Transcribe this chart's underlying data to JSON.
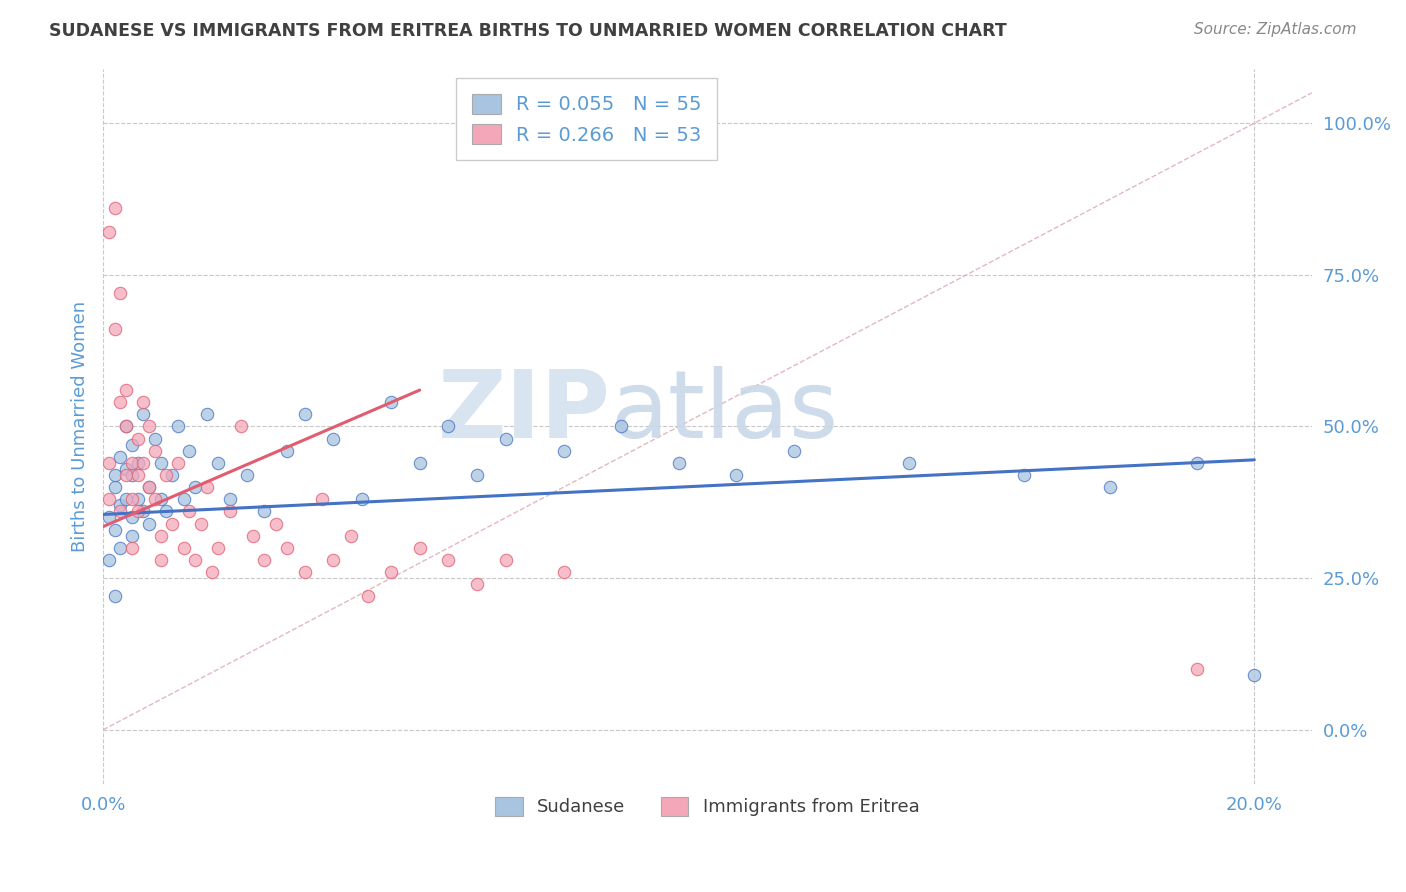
{
  "title": "SUDANESE VS IMMIGRANTS FROM ERITREA BIRTHS TO UNMARRIED WOMEN CORRELATION CHART",
  "source": "Source: ZipAtlas.com",
  "ylabel_label": "Births to Unmarried Women",
  "x_tick_labels": [
    "0.0%",
    "20.0%"
  ],
  "y_tick_labels": [
    "0.0%",
    "25.0%",
    "50.0%",
    "75.0%",
    "100.0%"
  ],
  "xlim": [
    0.0,
    0.21
  ],
  "ylim": [
    -0.09,
    1.09
  ],
  "y_ticks": [
    0.0,
    0.25,
    0.5,
    0.75,
    1.0
  ],
  "x_ticks": [
    0.0,
    0.2
  ],
  "legend_labels": [
    "Sudanese",
    "Immigrants from Eritrea"
  ],
  "R_sudanese": 0.055,
  "N_sudanese": 55,
  "R_eritrea": 0.266,
  "N_eritrea": 53,
  "sudanese_color": "#a8c4e0",
  "eritrea_color": "#f4a7b9",
  "sudanese_line_color": "#4472c4",
  "eritrea_line_color": "#e05c6e",
  "diagonal_color": "#e0b0b8",
  "grid_color": "#c8c8c8",
  "title_color": "#404040",
  "axis_label_color": "#5b9bd5",
  "tick_color": "#5b9bd5",
  "watermark_color": "#d8e4f0",
  "sudanese_scatter": [
    [
      0.001,
      0.35
    ],
    [
      0.001,
      0.28
    ],
    [
      0.002,
      0.4
    ],
    [
      0.002,
      0.33
    ],
    [
      0.002,
      0.42
    ],
    [
      0.003,
      0.37
    ],
    [
      0.003,
      0.45
    ],
    [
      0.003,
      0.3
    ],
    [
      0.004,
      0.5
    ],
    [
      0.004,
      0.38
    ],
    [
      0.004,
      0.43
    ],
    [
      0.005,
      0.35
    ],
    [
      0.005,
      0.47
    ],
    [
      0.005,
      0.32
    ],
    [
      0.005,
      0.42
    ],
    [
      0.006,
      0.38
    ],
    [
      0.006,
      0.44
    ],
    [
      0.007,
      0.36
    ],
    [
      0.007,
      0.52
    ],
    [
      0.008,
      0.4
    ],
    [
      0.008,
      0.34
    ],
    [
      0.009,
      0.48
    ],
    [
      0.01,
      0.38
    ],
    [
      0.01,
      0.44
    ],
    [
      0.011,
      0.36
    ],
    [
      0.012,
      0.42
    ],
    [
      0.013,
      0.5
    ],
    [
      0.014,
      0.38
    ],
    [
      0.015,
      0.46
    ],
    [
      0.016,
      0.4
    ],
    [
      0.018,
      0.52
    ],
    [
      0.02,
      0.44
    ],
    [
      0.022,
      0.38
    ],
    [
      0.025,
      0.42
    ],
    [
      0.028,
      0.36
    ],
    [
      0.032,
      0.46
    ],
    [
      0.035,
      0.52
    ],
    [
      0.04,
      0.48
    ],
    [
      0.045,
      0.38
    ],
    [
      0.05,
      0.54
    ],
    [
      0.055,
      0.44
    ],
    [
      0.06,
      0.5
    ],
    [
      0.065,
      0.42
    ],
    [
      0.07,
      0.48
    ],
    [
      0.08,
      0.46
    ],
    [
      0.09,
      0.5
    ],
    [
      0.1,
      0.44
    ],
    [
      0.11,
      0.42
    ],
    [
      0.12,
      0.46
    ],
    [
      0.14,
      0.44
    ],
    [
      0.16,
      0.42
    ],
    [
      0.175,
      0.4
    ],
    [
      0.19,
      0.44
    ],
    [
      0.2,
      0.09
    ],
    [
      0.002,
      0.22
    ]
  ],
  "eritrea_scatter": [
    [
      0.001,
      0.38
    ],
    [
      0.001,
      0.44
    ],
    [
      0.001,
      0.82
    ],
    [
      0.002,
      0.86
    ],
    [
      0.002,
      0.66
    ],
    [
      0.003,
      0.72
    ],
    [
      0.003,
      0.54
    ],
    [
      0.003,
      0.36
    ],
    [
      0.004,
      0.42
    ],
    [
      0.004,
      0.56
    ],
    [
      0.004,
      0.5
    ],
    [
      0.005,
      0.38
    ],
    [
      0.005,
      0.44
    ],
    [
      0.005,
      0.3
    ],
    [
      0.006,
      0.48
    ],
    [
      0.006,
      0.42
    ],
    [
      0.006,
      0.36
    ],
    [
      0.007,
      0.54
    ],
    [
      0.007,
      0.44
    ],
    [
      0.008,
      0.4
    ],
    [
      0.008,
      0.5
    ],
    [
      0.009,
      0.38
    ],
    [
      0.009,
      0.46
    ],
    [
      0.01,
      0.28
    ],
    [
      0.01,
      0.32
    ],
    [
      0.011,
      0.42
    ],
    [
      0.012,
      0.34
    ],
    [
      0.013,
      0.44
    ],
    [
      0.014,
      0.3
    ],
    [
      0.015,
      0.36
    ],
    [
      0.016,
      0.28
    ],
    [
      0.017,
      0.34
    ],
    [
      0.018,
      0.4
    ],
    [
      0.019,
      0.26
    ],
    [
      0.02,
      0.3
    ],
    [
      0.022,
      0.36
    ],
    [
      0.024,
      0.5
    ],
    [
      0.026,
      0.32
    ],
    [
      0.028,
      0.28
    ],
    [
      0.03,
      0.34
    ],
    [
      0.032,
      0.3
    ],
    [
      0.035,
      0.26
    ],
    [
      0.038,
      0.38
    ],
    [
      0.04,
      0.28
    ],
    [
      0.043,
      0.32
    ],
    [
      0.046,
      0.22
    ],
    [
      0.05,
      0.26
    ],
    [
      0.055,
      0.3
    ],
    [
      0.06,
      0.28
    ],
    [
      0.065,
      0.24
    ],
    [
      0.07,
      0.28
    ],
    [
      0.08,
      0.26
    ],
    [
      0.19,
      0.1
    ]
  ],
  "sudanese_line": {
    "x0": 0.0,
    "y0": 0.355,
    "x1": 0.2,
    "y1": 0.445
  },
  "eritrea_line": {
    "x0": 0.0,
    "y0": 0.335,
    "x1": 0.055,
    "y1": 0.56
  }
}
